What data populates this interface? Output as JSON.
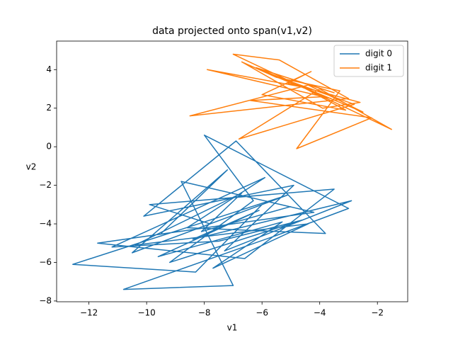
{
  "chart_data": {
    "type": "line",
    "title": "data projected onto span(v1,v2)",
    "x_label": "v1",
    "y_label": "v2",
    "xlim": [
      -13.12,
      -0.95
    ],
    "ylim": [
      -8.04,
      5.48
    ],
    "xticks": [
      {
        "value": -12,
        "label": "−12"
      },
      {
        "value": -10,
        "label": "−10"
      },
      {
        "value": -8,
        "label": "−8"
      },
      {
        "value": -6,
        "label": "−6"
      },
      {
        "value": -4,
        "label": "−4"
      },
      {
        "value": -2,
        "label": "−2"
      }
    ],
    "yticks": [
      {
        "value": -8,
        "label": "−8"
      },
      {
        "value": -6,
        "label": "−6"
      },
      {
        "value": -4,
        "label": "−4"
      },
      {
        "value": -2,
        "label": "−2"
      },
      0,
      2,
      4
    ],
    "legend": "upper right",
    "series": [
      {
        "name": "digit 0",
        "color": "#1f77b4",
        "x": [
          -9.5,
          -7.2,
          -10.5,
          -6.0,
          -8.3,
          -12.56,
          -5.1,
          -7.8,
          -9.9,
          -3.5,
          -6.6,
          -11.7,
          -4.2,
          -8.8,
          -7.0,
          -10.8,
          -5.5,
          -3.0,
          -8.0,
          -6.3,
          -9.2,
          -4.6,
          -7.5,
          -11.2,
          -5.9,
          -8.6,
          -3.8,
          -6.9,
          -10.1,
          -4.9,
          -7.3,
          -2.9,
          -8.4,
          -6.1,
          -9.6,
          -5.3,
          -7.7,
          -4.4,
          -10.4,
          -6.7,
          -8.1,
          -5.0
        ],
        "values": [
          -4.5,
          -1.2,
          -5.5,
          -3.0,
          -6.5,
          -6.1,
          -2.5,
          -4.0,
          -3.0,
          -2.2,
          -5.8,
          -5.0,
          -3.4,
          -1.8,
          -7.2,
          -7.4,
          -4.6,
          -3.2,
          0.6,
          -2.8,
          -6.0,
          -3.8,
          -4.9,
          -5.2,
          -1.6,
          -4.2,
          -4.5,
          0.3,
          -3.6,
          -2.0,
          -5.4,
          -2.8,
          -4.8,
          -3.3,
          -5.7,
          -3.9,
          -6.3,
          -4.0,
          -5.1,
          -2.4,
          -4.4,
          -3.1
        ]
      },
      {
        "name": "digit 1",
        "color": "#ff7f0e",
        "x": [
          -5.0,
          -3.5,
          -6.2,
          -2.5,
          -4.4,
          -8.5,
          -3.0,
          -5.4,
          -7.0,
          -1.51,
          -4.0,
          -6.8,
          -2.8,
          -5.8,
          -3.8,
          -6.4,
          -2.2,
          -4.8,
          -3.3,
          -5.5,
          -6.7,
          -3.9,
          -2.6,
          -5.1,
          -4.3,
          -6.0,
          -3.1,
          -4.6,
          -7.9,
          -3.6
        ],
        "values": [
          3.5,
          2.8,
          4.1,
          1.8,
          3.2,
          1.6,
          2.5,
          4.5,
          4.8,
          0.9,
          3.0,
          0.4,
          2.2,
          3.8,
          2.6,
          2.4,
          1.5,
          -0.1,
          2.9,
          3.6,
          4.4,
          2.0,
          2.3,
          3.3,
          3.9,
          2.7,
          1.9,
          3.1,
          4.0,
          2.5
        ]
      }
    ]
  }
}
